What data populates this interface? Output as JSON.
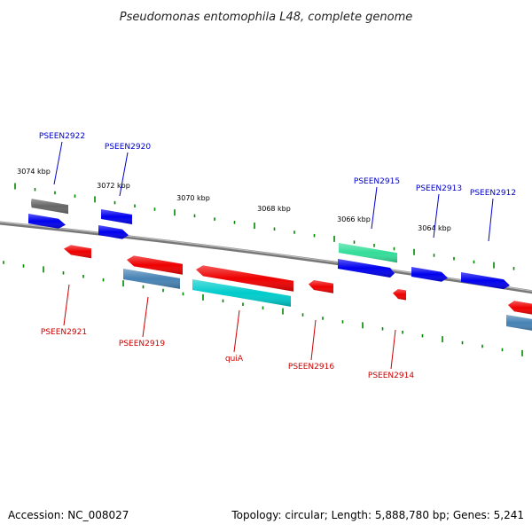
{
  "title": "Pseudomonas entomophila L48, complete genome",
  "footer": {
    "accession": "Accession: NC_008027",
    "summary": "Topology: circular; Length: 5,888,780 bp; Genes: 5,241"
  },
  "scale_labels": [
    "3074 kbp",
    "3072 kbp",
    "3070 kbp",
    "3068 kbp",
    "3066 kbp",
    "3064 kbp"
  ],
  "genes": [
    {
      "label": "PSEEN2922",
      "strand": "forward",
      "color": "#666666"
    },
    {
      "label": "",
      "strand": "forward",
      "color": "#0000ee"
    },
    {
      "label": "PSEEN2920",
      "strand": "forward",
      "color": "#0000ee"
    },
    {
      "label": "",
      "strand": "forward",
      "color": "#0000ee"
    },
    {
      "label": "PSEEN2915",
      "strand": "forward",
      "color": "#33dd99"
    },
    {
      "label": "",
      "strand": "forward",
      "color": "#0000ee"
    },
    {
      "label": "PSEEN2913",
      "strand": "forward",
      "color": "#0000ee"
    },
    {
      "label": "PSEEN2912",
      "strand": "forward",
      "color": "#0000ee"
    },
    {
      "label": "PSEEN2921",
      "strand": "reverse",
      "color": "#ee0000"
    },
    {
      "label": "",
      "strand": "reverse",
      "color": "#ee0000"
    },
    {
      "label": "PSEEN2919",
      "strand": "reverse",
      "color": "#4682b4"
    },
    {
      "label": "",
      "strand": "reverse",
      "color": "#ee0000"
    },
    {
      "label": "quiA",
      "strand": "reverse",
      "color": "#00cccc"
    },
    {
      "label": "PSEEN2916",
      "strand": "reverse",
      "color": "#ee0000"
    },
    {
      "label": "PSEEN2914",
      "strand": "reverse",
      "color": "#ee0000"
    },
    {
      "label": "",
      "strand": "reverse",
      "color": "#ee0000"
    },
    {
      "label": "",
      "strand": "reverse",
      "color": "#4682b4"
    }
  ],
  "colors": {
    "forward_label": "#0000cc",
    "reverse_label": "#cc0000",
    "backbone": "#888888",
    "tick": "#008800"
  }
}
